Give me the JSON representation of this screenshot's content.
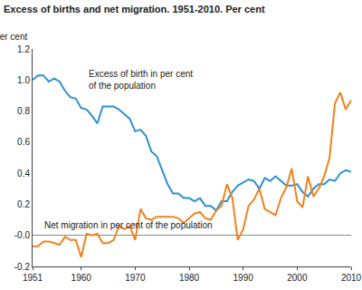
{
  "chart_data": {
    "type": "line",
    "title": "Excess of births and net migration. 1951-2010. Per cent",
    "y_label": "Per cent",
    "x": [
      1951,
      1952,
      1953,
      1954,
      1955,
      1956,
      1957,
      1958,
      1959,
      1960,
      1961,
      1962,
      1963,
      1964,
      1965,
      1966,
      1967,
      1968,
      1969,
      1970,
      1971,
      1972,
      1973,
      1974,
      1975,
      1976,
      1977,
      1978,
      1979,
      1980,
      1981,
      1982,
      1983,
      1984,
      1985,
      1986,
      1987,
      1988,
      1989,
      1990,
      1991,
      1992,
      1993,
      1994,
      1995,
      1996,
      1997,
      1998,
      1999,
      2000,
      2001,
      2002,
      2003,
      2004,
      2005,
      2006,
      2007,
      2008,
      2009,
      2010
    ],
    "series": [
      {
        "name": "Excess of birth in per cent\nof the population",
        "color": "#2f8fcf",
        "values": [
          1.0,
          1.03,
          1.03,
          0.99,
          1.01,
          0.99,
          0.93,
          0.89,
          0.88,
          0.82,
          0.81,
          0.77,
          0.72,
          0.83,
          0.83,
          0.83,
          0.81,
          0.78,
          0.75,
          0.67,
          0.68,
          0.64,
          0.54,
          0.51,
          0.42,
          0.33,
          0.27,
          0.27,
          0.24,
          0.24,
          0.22,
          0.24,
          0.19,
          0.19,
          0.16,
          0.22,
          0.22,
          0.28,
          0.32,
          0.34,
          0.36,
          0.35,
          0.3,
          0.37,
          0.35,
          0.38,
          0.35,
          0.32,
          0.32,
          0.33,
          0.28,
          0.25,
          0.3,
          0.33,
          0.33,
          0.36,
          0.35,
          0.4,
          0.42,
          0.41
        ]
      },
      {
        "name": "Net migration in per cent of the population",
        "color": "#f0821e",
        "values": [
          -0.07,
          -0.07,
          -0.04,
          -0.04,
          -0.05,
          -0.06,
          -0.01,
          -0.03,
          -0.03,
          -0.14,
          0.01,
          0.0,
          0.01,
          -0.05,
          -0.05,
          -0.03,
          0.06,
          0.04,
          0.06,
          -0.03,
          0.17,
          0.11,
          0.1,
          0.12,
          0.12,
          0.12,
          0.12,
          0.11,
          0.08,
          0.11,
          0.14,
          0.15,
          0.11,
          0.1,
          0.16,
          0.19,
          0.33,
          0.24,
          -0.03,
          0.04,
          0.19,
          0.23,
          0.3,
          0.17,
          0.15,
          0.13,
          0.24,
          0.31,
          0.43,
          0.22,
          0.18,
          0.38,
          0.25,
          0.3,
          0.38,
          0.5,
          0.85,
          0.92,
          0.81,
          0.87
        ]
      }
    ],
    "xlim": [
      1951,
      2010
    ],
    "xticks": [
      1951,
      1960,
      1970,
      1980,
      1990,
      2000,
      2010
    ],
    "ylim": [
      -0.2,
      1.2
    ],
    "yticks": [
      -0.2,
      {
        "value": 0,
        "label": "-0.0"
      },
      0.2,
      0.4,
      0.6,
      0.8,
      {
        "value": 1,
        "label": "1.0"
      },
      1.2
    ],
    "grid": false
  }
}
